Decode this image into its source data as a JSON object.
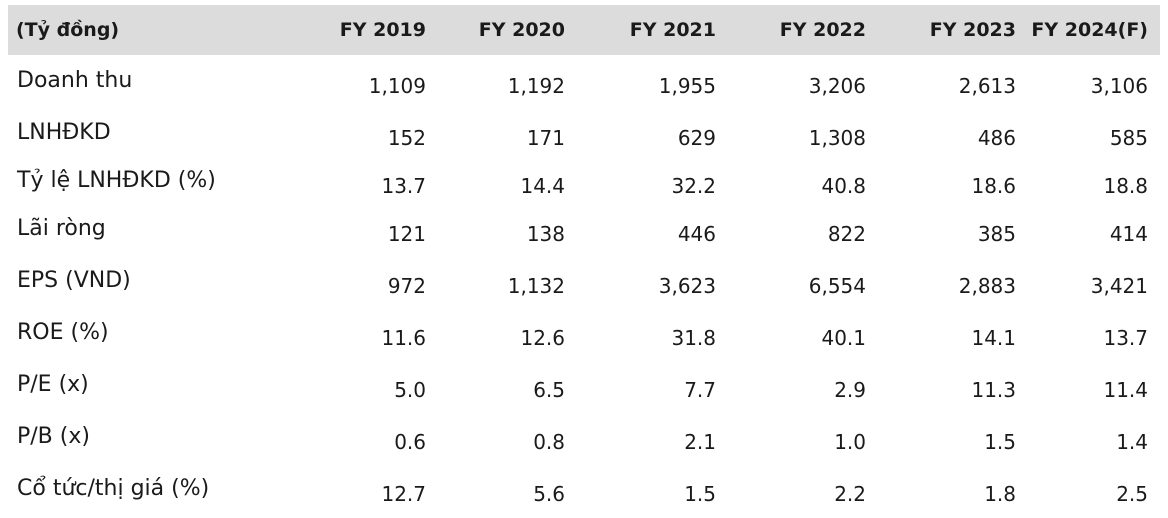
{
  "table": {
    "header": [
      "(Tỷ đồng)",
      "FY 2019",
      "FY 2020",
      "FY 2021",
      "FY 2022",
      "FY 2023",
      "FY 2024(F)"
    ],
    "rows": [
      {
        "label": "Doanh thu",
        "values": [
          "1,109",
          "1,192",
          "1,955",
          "3,206",
          "2,613",
          "3,106"
        ]
      },
      {
        "label": "LNHĐKD",
        "values": [
          "152",
          "171",
          "629",
          "1,308",
          "486",
          "585"
        ]
      },
      {
        "label": "Tỷ lệ LNHĐKD (%)",
        "values": [
          "13.7",
          "14.4",
          "32.2",
          "40.8",
          "18.6",
          "18.8"
        ]
      },
      {
        "label": "Lãi ròng",
        "values": [
          "121",
          "138",
          "446",
          "822",
          "385",
          "414"
        ]
      },
      {
        "label": "EPS (VND)",
        "values": [
          "972",
          "1,132",
          "3,623",
          "6,554",
          "2,883",
          "3,421"
        ]
      },
      {
        "label": "ROE (%)",
        "values": [
          "11.6",
          "12.6",
          "31.8",
          "40.1",
          "14.1",
          "13.7"
        ]
      },
      {
        "label": "P/E (x)",
        "values": [
          "5.0",
          "6.5",
          "7.7",
          "2.9",
          "11.3",
          "11.4"
        ]
      },
      {
        "label": "P/B (x)",
        "values": [
          "0.6",
          "0.8",
          "2.1",
          "1.0",
          "1.5",
          "1.4"
        ]
      },
      {
        "label": "Cổ tức/thị giá (%)",
        "values": [
          "12.7",
          "5.6",
          "1.5",
          "2.2",
          "1.8",
          "2.5"
        ]
      }
    ]
  }
}
